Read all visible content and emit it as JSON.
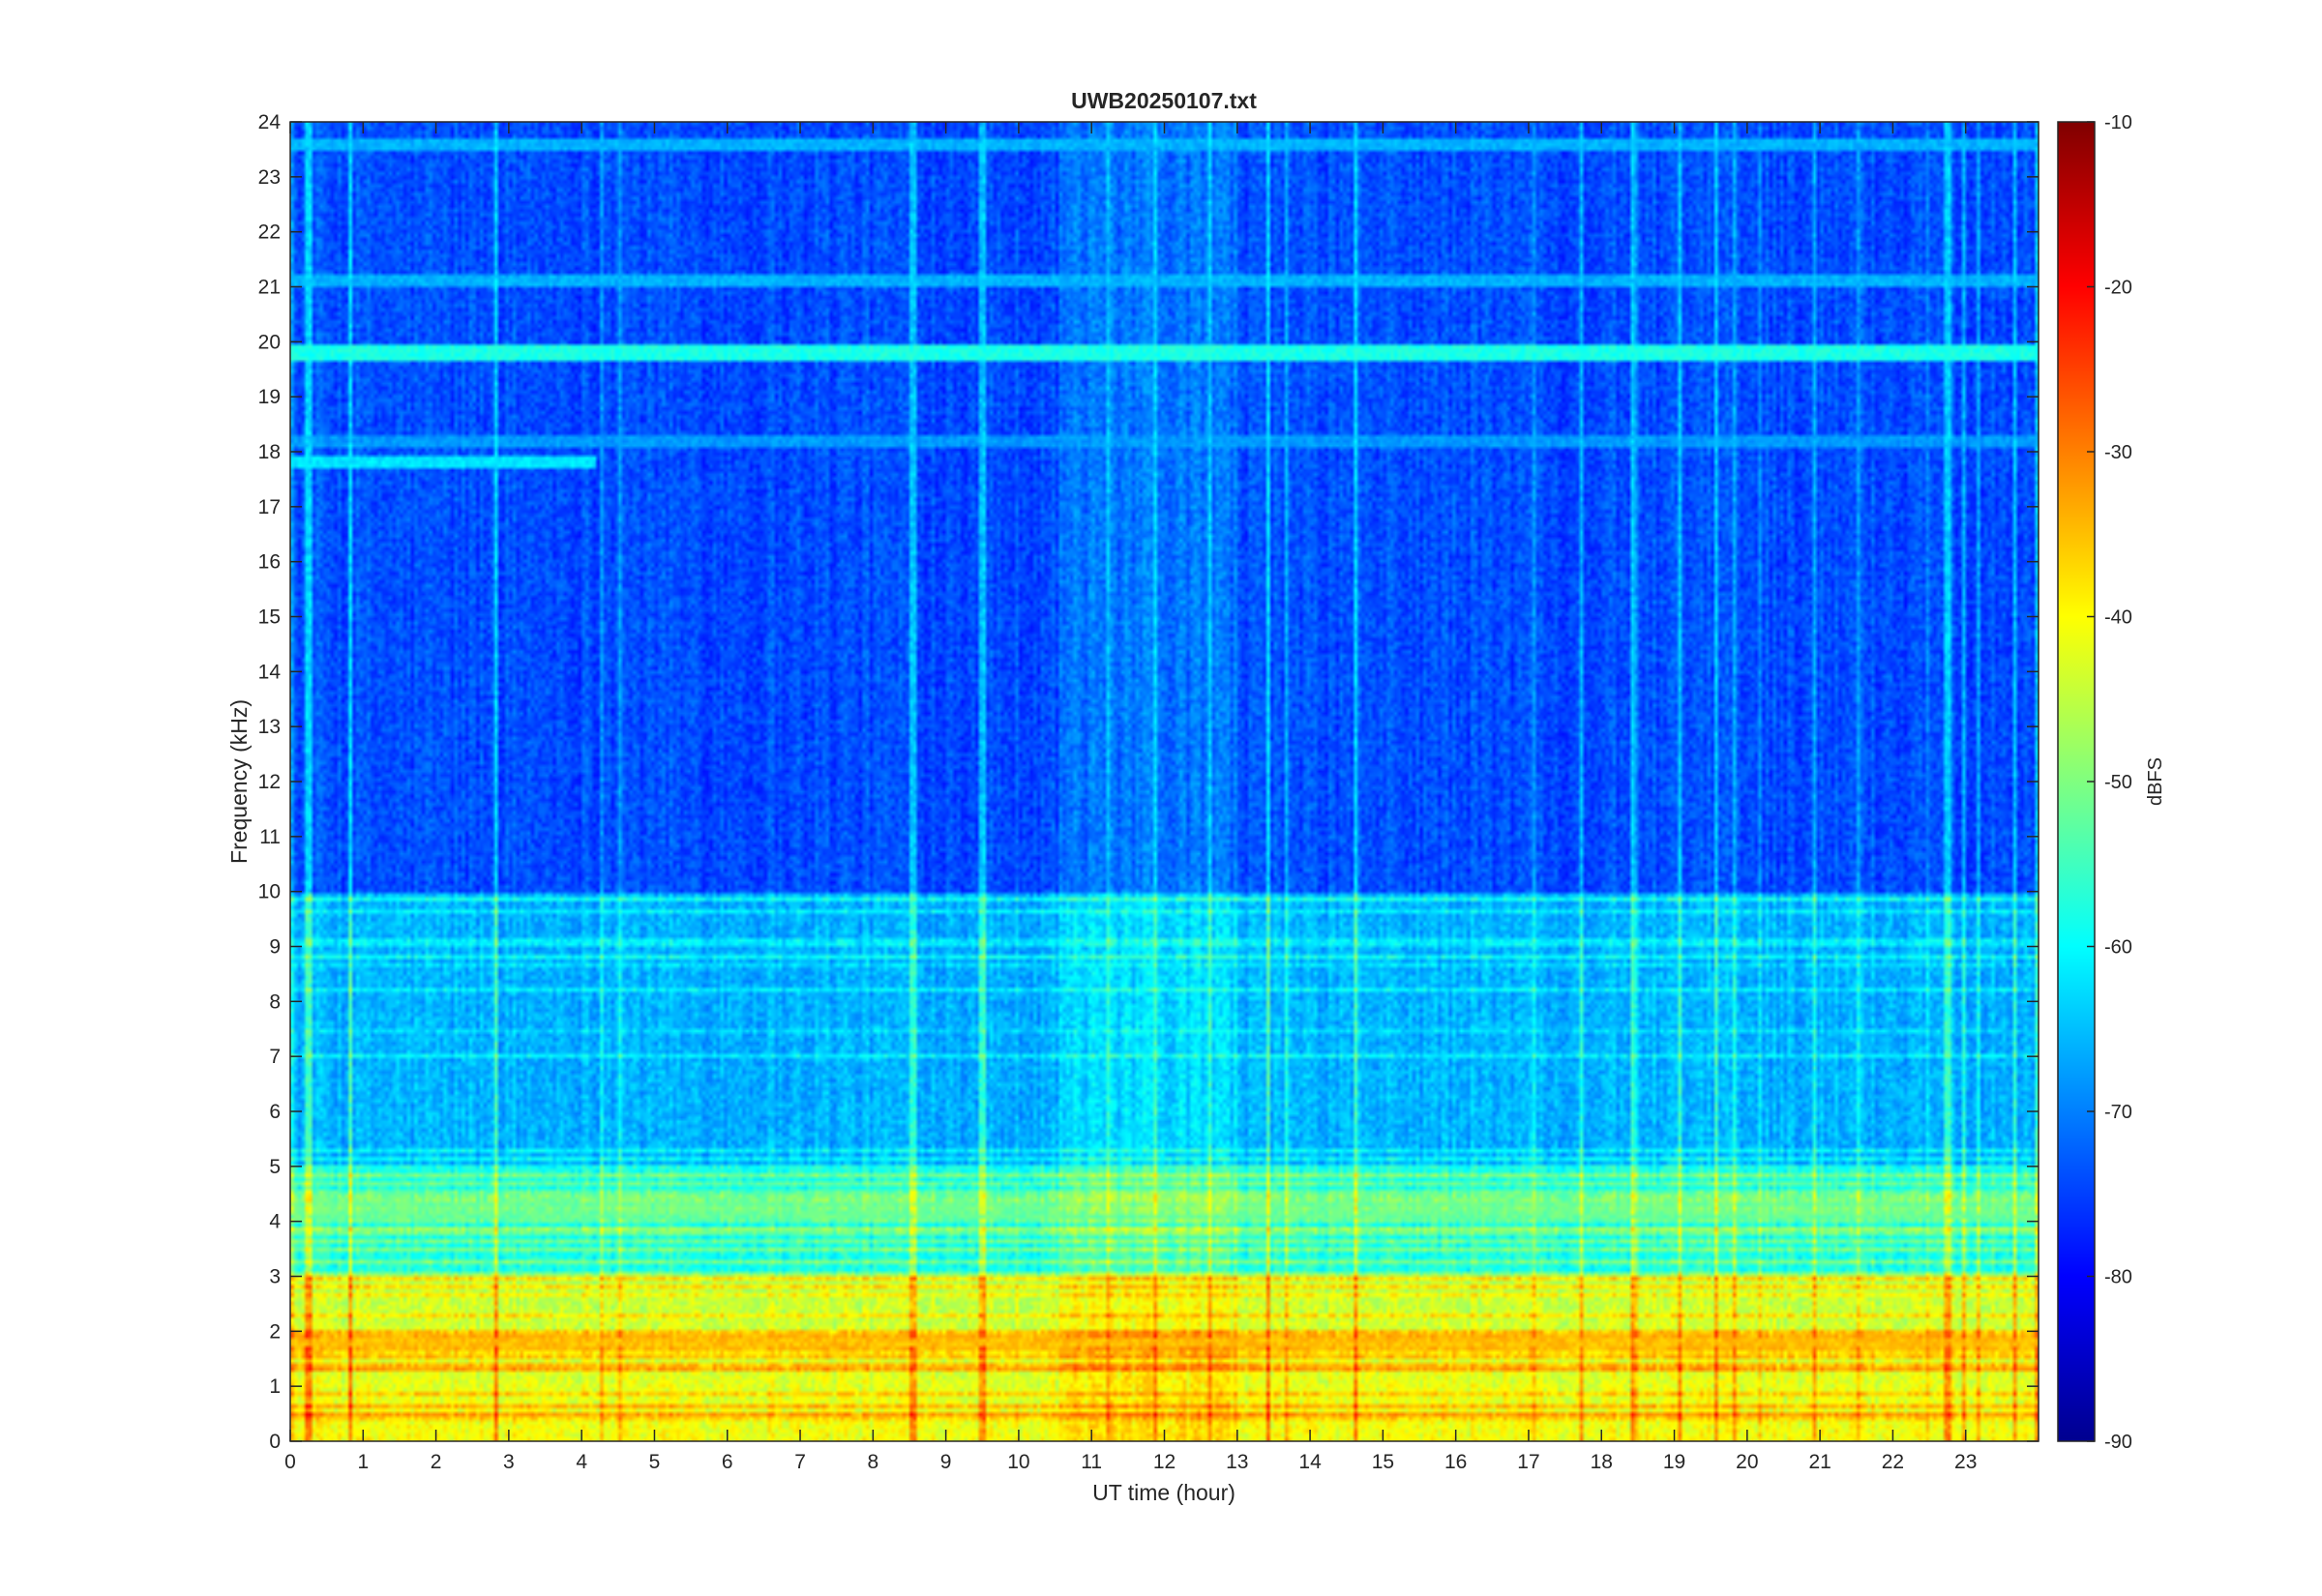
{
  "chart_data": {
    "type": "heatmap",
    "title": "UWB20250107.txt",
    "xlabel": "UT time (hour)",
    "ylabel": "Frequency (kHz)",
    "xlim": [
      0,
      24
    ],
    "ylim": [
      0,
      24
    ],
    "x_ticks": [
      0,
      1,
      2,
      3,
      4,
      5,
      6,
      7,
      8,
      9,
      10,
      11,
      12,
      13,
      14,
      15,
      16,
      17,
      18,
      19,
      20,
      21,
      22,
      23
    ],
    "y_ticks": [
      0,
      1,
      2,
      3,
      4,
      5,
      6,
      7,
      8,
      9,
      10,
      11,
      12,
      13,
      14,
      15,
      16,
      17,
      18,
      19,
      20,
      21,
      22,
      23,
      24
    ],
    "colorbar": {
      "label": "dBFS",
      "range": [
        -90,
        -10
      ],
      "ticks": [
        -10,
        -20,
        -30,
        -40,
        -50,
        -60,
        -70,
        -80,
        -90
      ],
      "colormap": "jet"
    },
    "grid": false,
    "approx_background_dbfs": [
      {
        "freq_khz": [
          0,
          3
        ],
        "level_dbfs": -45
      },
      {
        "freq_khz": [
          3,
          5
        ],
        "level_dbfs": -58
      },
      {
        "freq_khz": [
          5,
          10
        ],
        "level_dbfs": -66
      },
      {
        "freq_khz": [
          10,
          24
        ],
        "level_dbfs": -74
      }
    ],
    "notable_lines": [
      {
        "freq_khz": 19.8,
        "t_hours": [
          0,
          24
        ],
        "level_dbfs": -58
      },
      {
        "freq_khz": 18.2,
        "t_hours": [
          0,
          24
        ],
        "level_dbfs": -68
      },
      {
        "freq_khz": 17.8,
        "t_hours": [
          0,
          4.2
        ],
        "level_dbfs": -62
      },
      {
        "freq_khz": 21.1,
        "t_hours": [
          0,
          24
        ],
        "level_dbfs": -66
      },
      {
        "freq_khz": 23.6,
        "t_hours": [
          0,
          24
        ],
        "level_dbfs": -66
      },
      {
        "freq_khz": 4.2,
        "t_hours": [
          0,
          24
        ],
        "level_dbfs": -52
      },
      {
        "freq_khz": 1.8,
        "t_hours": [
          0,
          24
        ],
        "level_dbfs": -35
      }
    ]
  }
}
